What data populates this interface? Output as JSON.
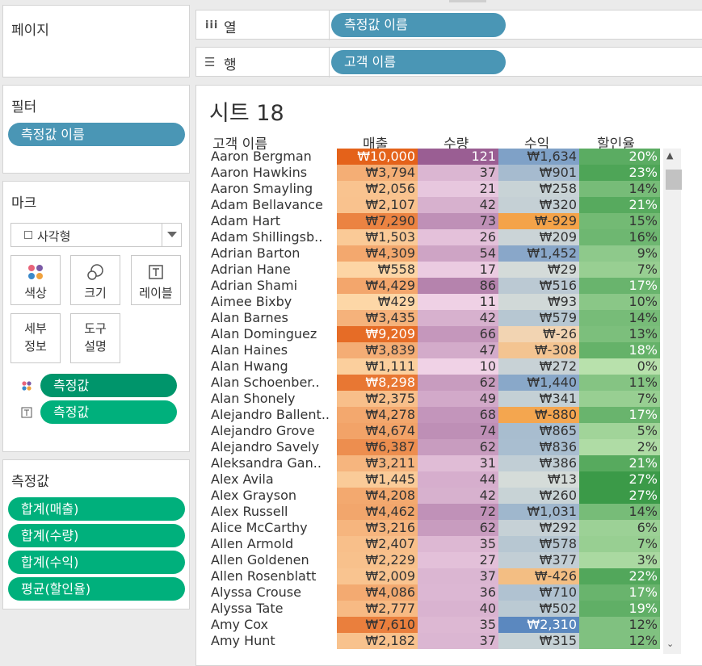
{
  "panels": {
    "pages": {
      "title": "페이지"
    },
    "filters": {
      "title": "필터",
      "pill": "측정값 이름"
    },
    "marks": {
      "title": "마크",
      "mark_type": "사각형",
      "mark_type_icon": "square-outline-icon",
      "buttons": {
        "color": "색상",
        "size": "크기",
        "label": "레이블",
        "detail": "세부\n정보",
        "tooltip": "도구\n설명"
      },
      "pills": [
        "측정값",
        "측정값"
      ]
    },
    "measures": {
      "title": "측정값",
      "pills": [
        "합계(매출)",
        "합계(수량)",
        "합계(수익)",
        "평균(할인율)"
      ]
    }
  },
  "shelves": {
    "columns": {
      "label": "열",
      "icon": "columns-icon",
      "pill": "측정값 이름"
    },
    "rows": {
      "label": "행",
      "icon": "rows-icon",
      "pill": "고객 이름"
    }
  },
  "sheet": {
    "title": "시트 18",
    "headers": {
      "name": "고객 이름",
      "sales": "매출",
      "qty": "수량",
      "profit": "수익",
      "discount": "할인율"
    },
    "rows": [
      {
        "name": "Aaron Bergman",
        "sales": "₩10,000",
        "qty": "121",
        "profit": "₩1,634",
        "discount": "20%"
      },
      {
        "name": "Aaron Hawkins",
        "sales": "₩3,794",
        "qty": "37",
        "profit": "₩901",
        "discount": "23%"
      },
      {
        "name": "Aaron Smayling",
        "sales": "₩2,056",
        "qty": "21",
        "profit": "₩258",
        "discount": "14%"
      },
      {
        "name": "Adam Bellavance",
        "sales": "₩2,107",
        "qty": "42",
        "profit": "₩320",
        "discount": "21%"
      },
      {
        "name": "Adam Hart",
        "sales": "₩7,290",
        "qty": "73",
        "profit": "₩-929",
        "discount": "15%"
      },
      {
        "name": "Adam Shillingsb..",
        "sales": "₩1,503",
        "qty": "26",
        "profit": "₩209",
        "discount": "16%"
      },
      {
        "name": "Adrian Barton",
        "sales": "₩4,309",
        "qty": "54",
        "profit": "₩1,452",
        "discount": "9%"
      },
      {
        "name": "Adrian Hane",
        "sales": "₩558",
        "qty": "17",
        "profit": "₩29",
        "discount": "7%"
      },
      {
        "name": "Adrian Shami",
        "sales": "₩4,429",
        "qty": "86",
        "profit": "₩516",
        "discount": "17%"
      },
      {
        "name": "Aimee Bixby",
        "sales": "₩429",
        "qty": "11",
        "profit": "₩93",
        "discount": "10%"
      },
      {
        "name": "Alan Barnes",
        "sales": "₩3,435",
        "qty": "42",
        "profit": "₩579",
        "discount": "14%"
      },
      {
        "name": "Alan Dominguez",
        "sales": "₩9,209",
        "qty": "66",
        "profit": "₩-26",
        "discount": "13%"
      },
      {
        "name": "Alan Haines",
        "sales": "₩3,839",
        "qty": "47",
        "profit": "₩-308",
        "discount": "18%"
      },
      {
        "name": "Alan Hwang",
        "sales": "₩1,111",
        "qty": "10",
        "profit": "₩272",
        "discount": "0%"
      },
      {
        "name": "Alan Schoenber..",
        "sales": "₩8,298",
        "qty": "62",
        "profit": "₩1,440",
        "discount": "11%"
      },
      {
        "name": "Alan Shonely",
        "sales": "₩2,375",
        "qty": "49",
        "profit": "₩341",
        "discount": "7%"
      },
      {
        "name": "Alejandro Ballent..",
        "sales": "₩4,278",
        "qty": "68",
        "profit": "₩-880",
        "discount": "17%"
      },
      {
        "name": "Alejandro Grove",
        "sales": "₩4,674",
        "qty": "74",
        "profit": "₩865",
        "discount": "5%"
      },
      {
        "name": "Alejandro Savely",
        "sales": "₩6,387",
        "qty": "62",
        "profit": "₩836",
        "discount": "2%"
      },
      {
        "name": "Aleksandra Gan..",
        "sales": "₩3,211",
        "qty": "31",
        "profit": "₩386",
        "discount": "21%"
      },
      {
        "name": "Alex Avila",
        "sales": "₩1,445",
        "qty": "44",
        "profit": "₩13",
        "discount": "27%"
      },
      {
        "name": "Alex Grayson",
        "sales": "₩4,208",
        "qty": "42",
        "profit": "₩260",
        "discount": "27%"
      },
      {
        "name": "Alex Russell",
        "sales": "₩4,462",
        "qty": "72",
        "profit": "₩1,031",
        "discount": "14%"
      },
      {
        "name": "Alice McCarthy",
        "sales": "₩3,216",
        "qty": "62",
        "profit": "₩292",
        "discount": "6%"
      },
      {
        "name": "Allen Armold",
        "sales": "₩2,407",
        "qty": "35",
        "profit": "₩578",
        "discount": "7%"
      },
      {
        "name": "Allen Goldenen",
        "sales": "₩2,229",
        "qty": "27",
        "profit": "₩377",
        "discount": "3%"
      },
      {
        "name": "Allen Rosenblatt",
        "sales": "₩2,009",
        "qty": "37",
        "profit": "₩-426",
        "discount": "22%"
      },
      {
        "name": "Alyssa Crouse",
        "sales": "₩4,086",
        "qty": "36",
        "profit": "₩710",
        "discount": "17%"
      },
      {
        "name": "Alyssa Tate",
        "sales": "₩2,777",
        "qty": "40",
        "profit": "₩502",
        "discount": "19%"
      },
      {
        "name": "Amy Cox",
        "sales": "₩7,610",
        "qty": "35",
        "profit": "₩2,310",
        "discount": "12%"
      },
      {
        "name": "Amy Hunt",
        "sales": "₩2,182",
        "qty": "37",
        "profit": "₩315",
        "discount": "12%"
      }
    ]
  },
  "colors": {
    "sales": [
      "#fdd7a7",
      "#e4621a"
    ],
    "qty": [
      "#f0d2e6",
      "#9a5e93"
    ],
    "profit_neg": [
      "#f2d5b5",
      "#f4a349"
    ],
    "profit_pos": [
      "#d6dcd9",
      "#5b88bf"
    ],
    "discount": [
      "#b8e1ac",
      "#3b9a48"
    ],
    "pill_blue": "#4a96b5",
    "pill_green": "#00b07c"
  }
}
